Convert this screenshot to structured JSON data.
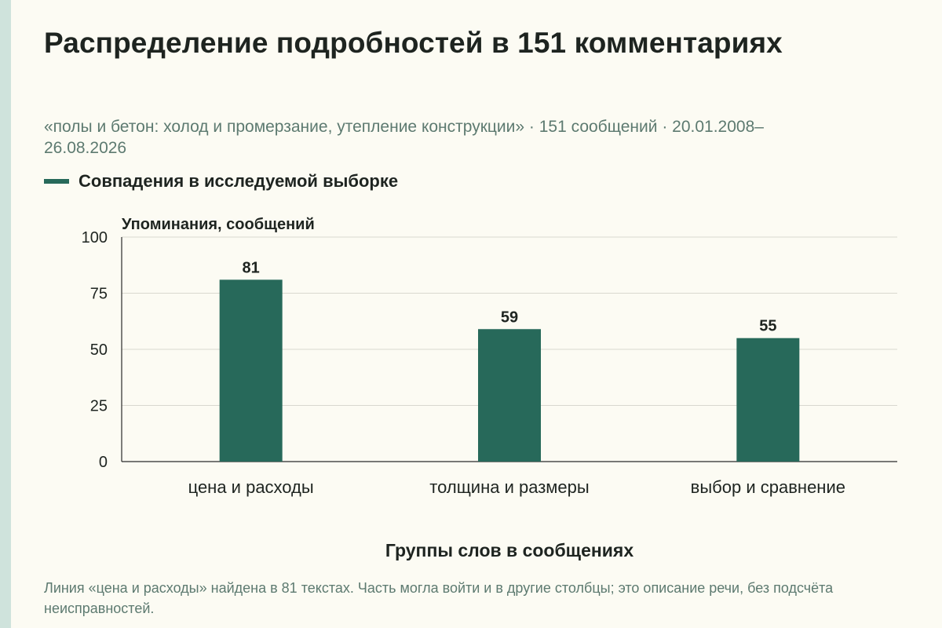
{
  "chart_data": {
    "type": "bar",
    "title": "Распределение подробностей в 151 комментариях",
    "subtitle": "«полы и бетон: холод и промерзание, утепление конструкции» · 151 сообщений · 20.01.2008–26.08.2026",
    "ylabel": "Упоминания, сообщений",
    "xlabel": "Группы слов в сообщениях",
    "categories": [
      "цена и расходы",
      "толщина и размеры",
      "выбор и сравнение"
    ],
    "series": [
      {
        "name": "Совпадения в исследуемой выборке",
        "values": [
          81,
          59,
          55
        ],
        "color": "#27695a"
      }
    ],
    "ylim": [
      0,
      100
    ],
    "yticks": [
      0,
      25,
      50,
      75,
      100
    ],
    "grid": true,
    "legend_position": "top-left",
    "data_labels": true
  },
  "caption": "Линия «цена и расходы» найдена в 81 текстах. Часть могла войти и в другие столбцы; это описание речи, без подсчёта неисправностей."
}
